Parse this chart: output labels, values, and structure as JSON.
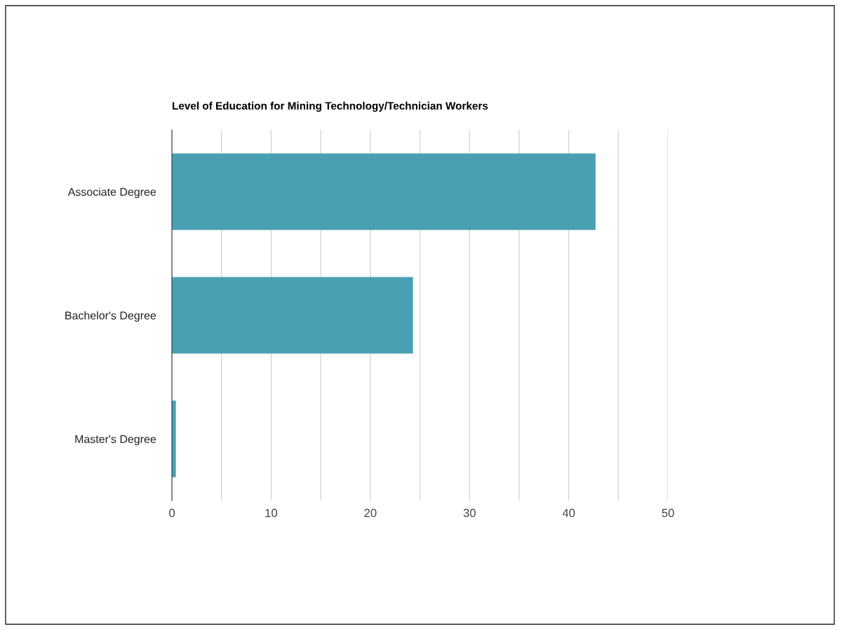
{
  "chart_data": {
    "type": "bar",
    "orientation": "horizontal",
    "title": "Level of Education for Mining Technology/Technician Workers",
    "categories": [
      "Associate Degree",
      "Bachelor's Degree",
      "Master's Degree"
    ],
    "values": [
      42.7,
      24.3,
      0.4
    ],
    "color": "#4aa0b3",
    "xlim": [
      0,
      50
    ],
    "xticks": [
      0,
      {
        "value": 5,
        "label": null
      },
      10,
      {
        "value": 15,
        "label": null
      },
      20,
      {
        "value": 25,
        "label": null
      },
      30,
      {
        "value": 35,
        "label": null
      },
      40,
      {
        "value": 45,
        "label": null
      },
      50
    ],
    "grid": "x"
  }
}
